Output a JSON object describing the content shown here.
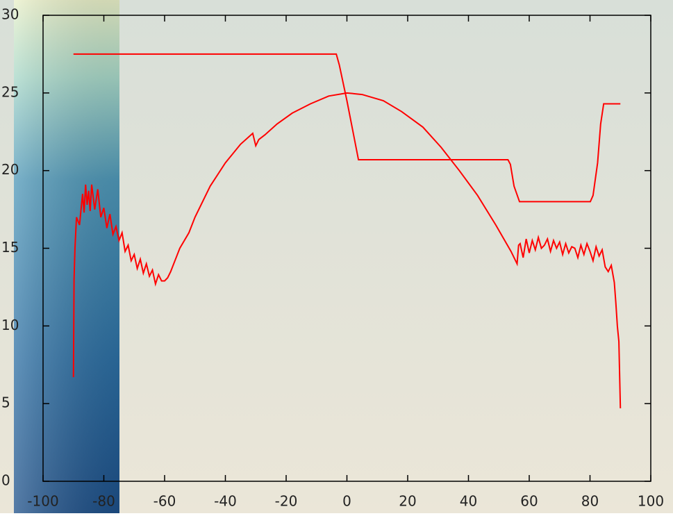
{
  "chart_data": {
    "type": "line",
    "xlim": [
      -100,
      100
    ],
    "xticks": [
      -100,
      -80,
      -60,
      -40,
      -20,
      0,
      20,
      40,
      60,
      80,
      100
    ],
    "ylim": [
      0,
      30
    ],
    "yticks": [
      0,
      5,
      10,
      15,
      20,
      25,
      30
    ],
    "series": [
      {
        "color": "#ff0000",
        "x": [
          -90,
          -3.5,
          -2.5,
          0,
          3.8,
          53,
          53.8,
          55,
          56.8,
          80.1,
          81,
          82.5,
          83.5,
          84.5,
          90
        ],
        "values": [
          27.5,
          27.5,
          26.8,
          24.5,
          20.7,
          20.7,
          20.4,
          19,
          18.0,
          18.0,
          18.4,
          20.5,
          23.0,
          24.3,
          24.3
        ]
      },
      {
        "color": "#ff0000",
        "x": [
          -90,
          -89.8,
          -89.5,
          -89,
          -88,
          -87,
          -86.5,
          -86,
          -85.5,
          -85,
          -84.5,
          -84,
          -83.5,
          -83,
          -82,
          -81,
          -80,
          -79,
          -78,
          -77,
          -76,
          -75,
          -74,
          -73,
          -72,
          -71,
          -70,
          -69,
          -68,
          -67,
          -66,
          -65,
          -64,
          -63,
          -62,
          -61,
          -60,
          -59,
          -58,
          -56,
          -55,
          -52,
          -50,
          -45,
          -40,
          -35,
          -31,
          -30,
          -29,
          -27,
          -23,
          -18,
          -12,
          -6,
          0,
          5,
          12,
          18,
          25,
          31,
          37,
          43,
          49,
          54,
          56,
          56.5,
          57,
          58,
          59,
          60,
          61,
          62,
          63,
          64,
          65,
          66,
          67,
          68,
          69,
          70,
          71,
          72,
          73,
          74,
          75,
          76,
          77,
          78,
          79,
          80,
          81,
          82,
          83,
          84,
          85,
          86,
          87,
          88,
          88.5,
          89,
          89.5,
          90
        ],
        "values": [
          6.7,
          13,
          15,
          17,
          16.5,
          18.5,
          17.3,
          19.1,
          17.8,
          18.7,
          17.4,
          19.1,
          18.3,
          17.5,
          18.8,
          17,
          17.6,
          16.3,
          17.2,
          15.9,
          16.4,
          15.5,
          16,
          14.8,
          15.2,
          14.2,
          14.6,
          13.7,
          14.3,
          13.4,
          14,
          13.2,
          13.6,
          12.7,
          13.3,
          12.9,
          12.9,
          13.1,
          13.5,
          14.5,
          15,
          16,
          17,
          19,
          20.5,
          21.7,
          22.4,
          21.6,
          22,
          22.3,
          23,
          23.7,
          24.3,
          24.8,
          25,
          24.9,
          24.5,
          23.8,
          22.8,
          21.5,
          20,
          18.4,
          16.5,
          14.8,
          14,
          15.2,
          15.3,
          14.4,
          15.6,
          14.7,
          15.5,
          14.9,
          15.7,
          15,
          15.2,
          15.6,
          14.8,
          15.5,
          15,
          15.4,
          14.6,
          15.3,
          14.7,
          15.1,
          15,
          14.4,
          15.2,
          14.6,
          15.3,
          14.8,
          14.2,
          15.1,
          14.5,
          14.9,
          13.8,
          13.5,
          13.9,
          12.8,
          11.5,
          10,
          9,
          4.7
        ]
      }
    ]
  }
}
